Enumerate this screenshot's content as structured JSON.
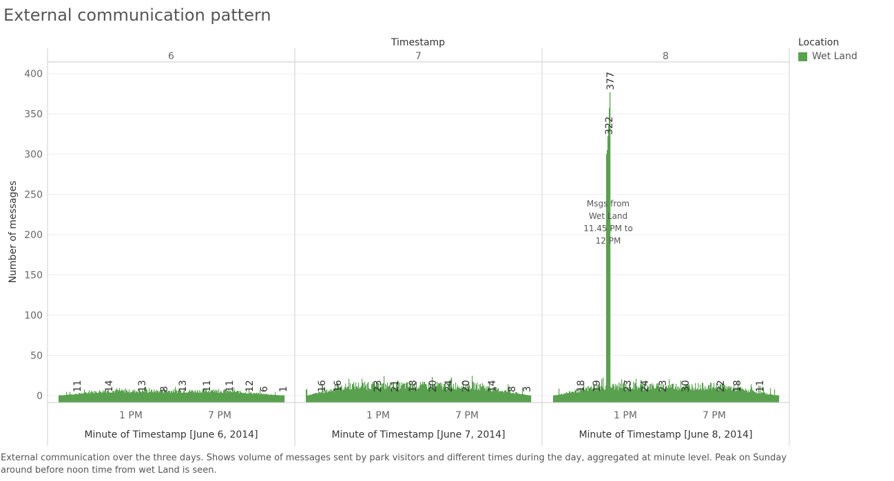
{
  "title": "External communication pattern",
  "caption": "External communication over the three days. Shows volume of messages sent by park visitors and different times during the day, aggregated at minute level. Peak on Sunday around before noon time from wet Land is seen.",
  "legend": {
    "title": "Location",
    "items": [
      {
        "label": "Wet Land",
        "color": "#59a14f"
      }
    ]
  },
  "chart_data": {
    "type": "bar",
    "facet_header": "Timestamp",
    "ylabel": "Number of messages",
    "ylim": [
      0,
      420
    ],
    "yticks": [
      0,
      50,
      100,
      150,
      200,
      250,
      300,
      350,
      400
    ],
    "xticks": [
      "1 PM",
      "7 PM"
    ],
    "bar_color": "#59a14f",
    "grid": true,
    "legend_position": "right",
    "panels": [
      {
        "header": "6",
        "xlabel": "Minute of Timestamp [June 6, 2014]",
        "label_values": [
          11,
          14,
          13,
          8,
          13,
          11,
          11,
          12,
          6,
          1
        ],
        "series": {
          "name": "Wet Land",
          "level": 6
        }
      },
      {
        "header": "7",
        "xlabel": "Minute of Timestamp [June 7, 2014]",
        "label_values": [
          16,
          16,
          23,
          21,
          18,
          20,
          24,
          20,
          14,
          8,
          3
        ],
        "series": {
          "name": "Wet Land",
          "level": 13
        }
      },
      {
        "header": "8",
        "xlabel": "Minute of Timestamp [June 8, 2014]",
        "label_values": [
          18,
          19,
          322,
          377,
          23,
          24,
          23,
          30,
          22,
          18,
          11
        ],
        "series": {
          "name": "Wet Land",
          "level": 12
        },
        "peak": {
          "values": [
            377,
            322
          ]
        }
      }
    ],
    "annotation": "Msgs from Wet Land 11.45 PM to 12 PM"
  }
}
